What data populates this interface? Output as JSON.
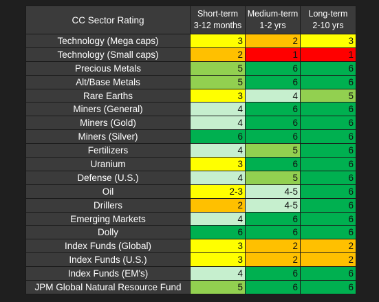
{
  "table": {
    "title": "CC Sector Rating",
    "columns": [
      {
        "line1": "Short-term",
        "line2": "3-12 months"
      },
      {
        "line1": "Medium-term",
        "line2": "1-2 yrs"
      },
      {
        "line1": "Long-term",
        "line2": "2-10 yrs"
      }
    ],
    "rows": [
      {
        "sector": "Technology (Mega caps)",
        "ratings": [
          "3",
          "2",
          "3"
        ],
        "colors": [
          "r-yellow",
          "r-orange",
          "r-yellow"
        ]
      },
      {
        "sector": "Technology (Small caps)",
        "ratings": [
          "2",
          "1",
          "1"
        ],
        "colors": [
          "r-orange",
          "r-red",
          "r-red"
        ]
      },
      {
        "sector": "Precious Metals",
        "ratings": [
          "5",
          "6",
          "6"
        ],
        "colors": [
          "r-lgreen",
          "r-green",
          "r-green"
        ]
      },
      {
        "sector": "Alt/Base Metals",
        "ratings": [
          "5",
          "6",
          "6"
        ],
        "colors": [
          "r-lgreen",
          "r-green",
          "r-green"
        ]
      },
      {
        "sector": "Rare Earths",
        "ratings": [
          "3",
          "4",
          "5"
        ],
        "colors": [
          "r-yellow",
          "r-pale",
          "r-lgreen"
        ]
      },
      {
        "sector": "Miners (General)",
        "ratings": [
          "4",
          "6",
          "6"
        ],
        "colors": [
          "r-pale",
          "r-green",
          "r-green"
        ]
      },
      {
        "sector": "Miners (Gold)",
        "ratings": [
          "4",
          "6",
          "6"
        ],
        "colors": [
          "r-pale",
          "r-green",
          "r-green"
        ]
      },
      {
        "sector": "Miners (Silver)",
        "ratings": [
          "6",
          "6",
          "6"
        ],
        "colors": [
          "r-green",
          "r-green",
          "r-green"
        ]
      },
      {
        "sector": "Fertilizers",
        "ratings": [
          "4",
          "5",
          "6"
        ],
        "colors": [
          "r-pale",
          "r-lgreen",
          "r-green"
        ]
      },
      {
        "sector": "Uranium",
        "ratings": [
          "3",
          "6",
          "6"
        ],
        "colors": [
          "r-yellow",
          "r-green",
          "r-green"
        ]
      },
      {
        "sector": "Defense (U.S.)",
        "ratings": [
          "4",
          "5",
          "6"
        ],
        "colors": [
          "r-pale",
          "r-lgreen",
          "r-green"
        ]
      },
      {
        "sector": "Oil",
        "ratings": [
          "2-3",
          "4-5",
          "6"
        ],
        "colors": [
          "r-yellow",
          "r-pale",
          "r-green"
        ]
      },
      {
        "sector": "Drillers",
        "ratings": [
          "2",
          "4-5",
          "6"
        ],
        "colors": [
          "r-orange",
          "r-pale",
          "r-green"
        ]
      },
      {
        "sector": "Emerging Markets",
        "ratings": [
          "4",
          "6",
          "6"
        ],
        "colors": [
          "r-pale",
          "r-green",
          "r-green"
        ]
      },
      {
        "sector": "Dolly",
        "ratings": [
          "6",
          "6",
          "6"
        ],
        "colors": [
          "r-green",
          "r-green",
          "r-green"
        ]
      },
      {
        "sector": "Index Funds (Global)",
        "ratings": [
          "3",
          "2",
          "2"
        ],
        "colors": [
          "r-yellow",
          "r-orange",
          "r-orange"
        ]
      },
      {
        "sector": "Index Funds (U.S.)",
        "ratings": [
          "3",
          "2",
          "2"
        ],
        "colors": [
          "r-yellow",
          "r-orange",
          "r-orange"
        ]
      },
      {
        "sector": "Index Funds (EM's)",
        "ratings": [
          "4",
          "6",
          "6"
        ],
        "colors": [
          "r-pale",
          "r-green",
          "r-green"
        ]
      },
      {
        "sector": "JPM Global Natural Resource Fund",
        "ratings": [
          "5",
          "6",
          "6"
        ],
        "colors": [
          "r-lgreen",
          "r-green",
          "r-green"
        ]
      }
    ]
  },
  "colors": {
    "r-yellow": "#ffff00",
    "r-orange": "#ffc000",
    "r-red": "#ff0000",
    "r-green": "#00b050",
    "r-lgreen": "#92d050",
    "r-pale": "#c6efce",
    "header_bg": "#3b3b3b",
    "page_bg": "#1f1f1f"
  }
}
